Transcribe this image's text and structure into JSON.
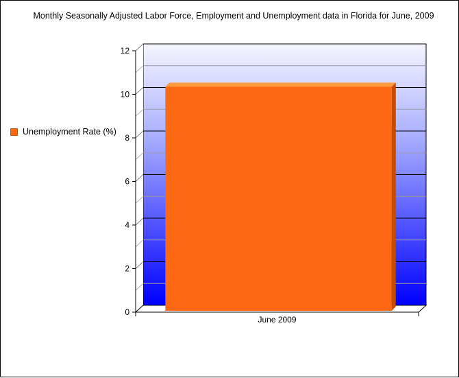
{
  "chart_data": {
    "type": "bar",
    "title": "Monthly Seasonally Adjusted Labor Force, Employment and Unemployment data in Florida for June, 2009",
    "categories": [
      "June 2009"
    ],
    "series": [
      {
        "name": "Unemployment Rate (%)",
        "values": [
          10.6
        ],
        "color": "#fd6813"
      }
    ],
    "xlabel": "",
    "ylabel": "",
    "ylim": [
      0,
      12
    ],
    "yticks": [
      0,
      2,
      4,
      6,
      8,
      10,
      12
    ],
    "grid": true,
    "three_d": true,
    "background_gradient": [
      "#f5f5ff",
      "#0000ff"
    ],
    "legend_position": "left"
  }
}
